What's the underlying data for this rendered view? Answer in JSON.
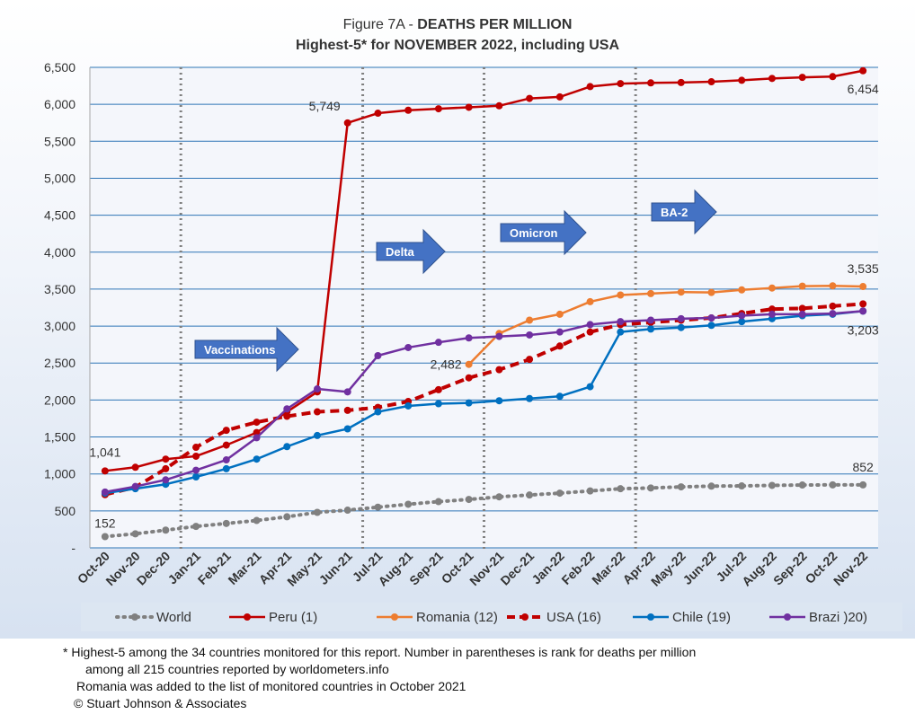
{
  "chart_data": {
    "type": "line",
    "title_prefix": "Figure 7A - ",
    "title_bold": "DEATHS PER MILLION",
    "subtitle": "Highest-5* for  NOVEMBER 2022, including USA",
    "categories": [
      "Oct-20",
      "Nov-20",
      "Dec-20",
      "Jan-21",
      "Feb-21",
      "Mar-21",
      "Apr-21",
      "May-21",
      "Jun-21",
      "Jul-21",
      "Aug-21",
      "Sep-21",
      "Oct-21",
      "Nov-21",
      "Dec-21",
      "Jan-22",
      "Feb-22",
      "Mar-22",
      "Apr-22",
      "May-22",
      "Jun-22",
      "Jul-22",
      "Aug-22",
      "Sep-22",
      "Oct-22",
      "Nov-22"
    ],
    "ylim": [
      0,
      6500
    ],
    "yticks": [
      "-",
      "500",
      "1,000",
      "1,500",
      "2,000",
      "2,500",
      "3,000",
      "3,500",
      "4,000",
      "4,500",
      "5,000",
      "5,500",
      "6,000",
      "6,500"
    ],
    "grid": true,
    "legend_position": "bottom",
    "series": [
      {
        "name": "World",
        "color": "#808080",
        "style": "dotted",
        "values": [
          152,
          190,
          240,
          290,
          330,
          370,
          420,
          480,
          510,
          550,
          590,
          625,
          655,
          690,
          715,
          740,
          770,
          800,
          810,
          825,
          835,
          838,
          845,
          850,
          852,
          852
        ]
      },
      {
        "name": "Peru (1)",
        "color": "#c00000",
        "style": "solid",
        "values": [
          1041,
          1090,
          1200,
          1240,
          1390,
          1560,
          1840,
          2110,
          5749,
          5880,
          5920,
          5940,
          5960,
          5980,
          6080,
          6100,
          6240,
          6280,
          6290,
          6295,
          6305,
          6325,
          6350,
          6365,
          6375,
          6454
        ]
      },
      {
        "name": "Romania (12)",
        "color": "#ed7d31",
        "style": "solid",
        "values": [
          null,
          null,
          null,
          null,
          null,
          null,
          null,
          null,
          null,
          null,
          null,
          null,
          2482,
          2900,
          3080,
          3160,
          3330,
          3420,
          3440,
          3460,
          3455,
          3490,
          3515,
          3540,
          3545,
          3535
        ]
      },
      {
        "name": "USA (16)",
        "color": "#c00000",
        "style": "dashed",
        "values": [
          720,
          820,
          1070,
          1360,
          1590,
          1700,
          1780,
          1840,
          1860,
          1900,
          1980,
          2140,
          2300,
          2410,
          2550,
          2730,
          2920,
          3020,
          3050,
          3080,
          3110,
          3170,
          3230,
          3240,
          3270,
          3300
        ]
      },
      {
        "name": "Chile (19)",
        "color": "#0070c0",
        "style": "solid",
        "values": [
          740,
          800,
          860,
          960,
          1070,
          1200,
          1370,
          1520,
          1610,
          1840,
          1920,
          1950,
          1960,
          1990,
          2020,
          2050,
          2180,
          2920,
          2960,
          2980,
          3010,
          3060,
          3100,
          3140,
          3160,
          3203
        ]
      },
      {
        "name": "Brazi )20)",
        "color": "#7030a0",
        "style": "solid",
        "values": [
          755,
          830,
          920,
          1050,
          1190,
          1490,
          1880,
          2150,
          2110,
          2600,
          2710,
          2780,
          2840,
          2860,
          2880,
          2920,
          3020,
          3060,
          3080,
          3100,
          3110,
          3140,
          3160,
          3160,
          3170,
          3203
        ]
      }
    ],
    "data_labels": [
      {
        "text": "1,041",
        "series": 1,
        "index": 0
      },
      {
        "text": "5,749",
        "series": 1,
        "index": 8
      },
      {
        "text": "6,454",
        "series": 1,
        "index": 25
      },
      {
        "text": "3,535",
        "series": 2,
        "index": 25
      },
      {
        "text": "2,482",
        "series": 2,
        "index": 12
      },
      {
        "text": "3,203",
        "series": 4,
        "index": 25
      },
      {
        "text": "152",
        "series": 0,
        "index": 0
      },
      {
        "text": "852",
        "series": 0,
        "index": 25
      }
    ],
    "markers": [
      {
        "label": "Vaccinations",
        "index": 3
      },
      {
        "label": "Delta",
        "index": 9
      },
      {
        "label": "Omicron",
        "index": 13
      },
      {
        "label": "BA-2",
        "index": 18
      }
    ]
  },
  "footnotes": [
    "* Highest-5 among the 34 countries monitored for this report. Number in parentheses is rank for deaths per million",
    "among all 215 countries reported by worldometers.info",
    "Romania was added to the list of monitored countries in October 2021",
    "© Stuart Johnson & Associates"
  ]
}
